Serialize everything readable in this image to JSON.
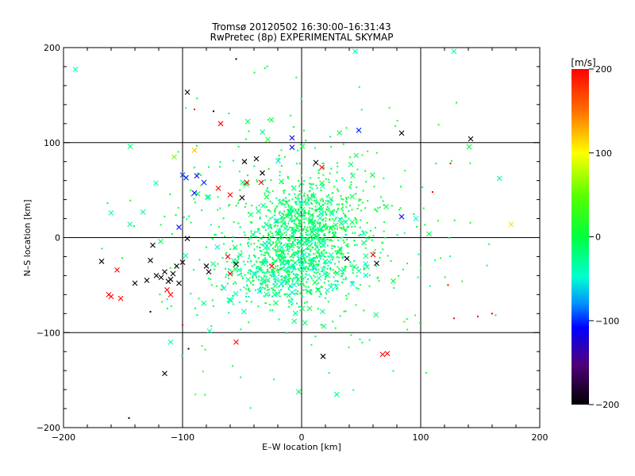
{
  "chart_data": {
    "type": "scatter",
    "title": "Tromsø 20120502 16:30:00–16:31:43",
    "subtitle": "RwPretec (8p) EXPERIMENTAL SKYMAP",
    "xlabel": "E–W location [km]",
    "ylabel": "N–S location [km]",
    "xlim": [
      -200,
      200
    ],
    "ylim": [
      -200,
      200
    ],
    "xticks": [
      "−200",
      "−100",
      "0",
      "100",
      "200"
    ],
    "yticks": [
      "−200",
      "−100",
      "0",
      "100",
      "200"
    ],
    "grid": true,
    "colorbar": {
      "label": "[m/s]",
      "range": [
        -200,
        200
      ],
      "ticks": [
        "200",
        "100",
        "0",
        "−100",
        "−200"
      ]
    },
    "markers": {
      "cross": "×",
      "dot": "·"
    },
    "clusters": [
      {
        "cx": 5,
        "cy": 10,
        "sx": 22,
        "sy": 25,
        "n_dots": 650,
        "n_cross": 90,
        "v": 0
      },
      {
        "cx": -15,
        "cy": -35,
        "sx": 28,
        "sy": 18,
        "n_dots": 450,
        "n_cross": 70,
        "v": -8
      },
      {
        "cx": 0,
        "cy": 0,
        "sx": 60,
        "sy": 70,
        "n_dots": 350,
        "n_cross": 60,
        "v": 5
      }
    ],
    "points": [
      {
        "x": -190,
        "y": 177,
        "v": -20,
        "m": "x"
      },
      {
        "x": -160,
        "y": 26,
        "v": -20,
        "m": "x"
      },
      {
        "x": -162,
        "y": -60,
        "v": 200,
        "m": "x"
      },
      {
        "x": -160,
        "y": -62,
        "v": 200,
        "m": "x"
      },
      {
        "x": -152,
        "y": -64,
        "v": 200,
        "m": "x"
      },
      {
        "x": -145,
        "y": -190,
        "v": -200,
        "m": "."
      },
      {
        "x": -140,
        "y": -48,
        "v": -200,
        "m": "x"
      },
      {
        "x": -168,
        "y": -25,
        "v": -200,
        "m": "x"
      },
      {
        "x": -155,
        "y": -34,
        "v": 200,
        "m": "x"
      },
      {
        "x": -125,
        "y": -8,
        "v": -200,
        "m": "x"
      },
      {
        "x": -127,
        "y": -24,
        "v": -200,
        "m": "x"
      },
      {
        "x": -130,
        "y": -45,
        "v": -200,
        "m": "x"
      },
      {
        "x": -122,
        "y": -40,
        "v": -200,
        "m": "x"
      },
      {
        "x": -118,
        "y": -42,
        "v": -200,
        "m": "x"
      },
      {
        "x": -115,
        "y": -36,
        "v": -200,
        "m": "x"
      },
      {
        "x": -112,
        "y": -46,
        "v": -200,
        "m": "x"
      },
      {
        "x": -110,
        "y": -44,
        "v": -200,
        "m": "x"
      },
      {
        "x": -108,
        "y": -38,
        "v": -200,
        "m": "x"
      },
      {
        "x": -105,
        "y": -30,
        "v": -200,
        "m": "x"
      },
      {
        "x": -103,
        "y": -48,
        "v": -200,
        "m": "x"
      },
      {
        "x": -100,
        "y": -26,
        "v": -200,
        "m": "x"
      },
      {
        "x": -113,
        "y": -55,
        "v": 200,
        "m": "x"
      },
      {
        "x": -110,
        "y": -60,
        "v": 200,
        "m": "x"
      },
      {
        "x": -96,
        "y": -1,
        "v": -200,
        "m": "x"
      },
      {
        "x": -115,
        "y": -143,
        "v": -200,
        "m": "x"
      },
      {
        "x": -110,
        "y": -110,
        "v": -20,
        "m": "x"
      },
      {
        "x": -144,
        "y": 96,
        "v": -10,
        "m": "x"
      },
      {
        "x": -107,
        "y": 85,
        "v": 60,
        "m": "x"
      },
      {
        "x": -96,
        "y": 153,
        "v": -200,
        "m": "x"
      },
      {
        "x": -90,
        "y": 92,
        "v": 120,
        "m": "x"
      },
      {
        "x": -100,
        "y": 66,
        "v": -90,
        "m": "x"
      },
      {
        "x": -97,
        "y": 63,
        "v": -100,
        "m": "x"
      },
      {
        "x": -88,
        "y": 65,
        "v": -110,
        "m": "x"
      },
      {
        "x": -82,
        "y": 58,
        "v": -100,
        "m": "x"
      },
      {
        "x": -90,
        "y": 47,
        "v": -110,
        "m": "x"
      },
      {
        "x": -103,
        "y": 11,
        "v": -110,
        "m": "x"
      },
      {
        "x": -68,
        "y": 120,
        "v": 200,
        "m": "x"
      },
      {
        "x": -70,
        "y": 52,
        "v": 200,
        "m": "x"
      },
      {
        "x": -60,
        "y": 45,
        "v": 200,
        "m": "x"
      },
      {
        "x": -48,
        "y": 80,
        "v": -200,
        "m": "x"
      },
      {
        "x": -46,
        "y": 58,
        "v": 200,
        "m": "x"
      },
      {
        "x": -50,
        "y": 42,
        "v": -200,
        "m": "x"
      },
      {
        "x": -38,
        "y": 83,
        "v": -200,
        "m": "x"
      },
      {
        "x": -33,
        "y": 68,
        "v": -200,
        "m": "x"
      },
      {
        "x": -55,
        "y": -28,
        "v": -200,
        "m": "x"
      },
      {
        "x": -60,
        "y": -38,
        "v": 200,
        "m": "x"
      },
      {
        "x": -80,
        "y": -30,
        "v": -200,
        "m": "x"
      },
      {
        "x": -78,
        "y": -36,
        "v": -200,
        "m": "x"
      },
      {
        "x": -62,
        "y": -20,
        "v": 200,
        "m": "x"
      },
      {
        "x": -55,
        "y": -110,
        "v": 200,
        "m": "x"
      },
      {
        "x": -34,
        "y": 58,
        "v": 200,
        "m": "x"
      },
      {
        "x": -25,
        "y": -30,
        "v": 200,
        "m": "x"
      },
      {
        "x": -8,
        "y": 95,
        "v": -110,
        "m": "x"
      },
      {
        "x": -8,
        "y": 105,
        "v": -110,
        "m": "x"
      },
      {
        "x": 12,
        "y": 79,
        "v": -200,
        "m": "x"
      },
      {
        "x": 17,
        "y": 74,
        "v": 200,
        "m": "x"
      },
      {
        "x": 18,
        "y": -125,
        "v": -200,
        "m": "x"
      },
      {
        "x": 38,
        "y": -22,
        "v": -200,
        "m": "x"
      },
      {
        "x": 48,
        "y": 113,
        "v": -100,
        "m": "x"
      },
      {
        "x": 60,
        "y": -18,
        "v": 200,
        "m": "x"
      },
      {
        "x": 63,
        "y": -27,
        "v": -200,
        "m": "x"
      },
      {
        "x": 68,
        "y": -123,
        "v": 200,
        "m": "x"
      },
      {
        "x": 72,
        "y": -122,
        "v": 200,
        "m": "x"
      },
      {
        "x": 84,
        "y": 110,
        "v": -200,
        "m": "x"
      },
      {
        "x": 84,
        "y": 22,
        "v": -110,
        "m": "x"
      },
      {
        "x": 96,
        "y": 20,
        "v": -30,
        "m": "x"
      },
      {
        "x": 128,
        "y": 196,
        "v": -20,
        "m": "x"
      },
      {
        "x": 142,
        "y": 104,
        "v": -200,
        "m": "x"
      },
      {
        "x": 176,
        "y": 14,
        "v": 110,
        "m": "x"
      },
      {
        "x": 123,
        "y": -50,
        "v": 200,
        "m": "."
      },
      {
        "x": 128,
        "y": -85,
        "v": 200,
        "m": "."
      },
      {
        "x": 148,
        "y": -83,
        "v": 200,
        "m": "."
      },
      {
        "x": 160,
        "y": -80,
        "v": 200,
        "m": "."
      },
      {
        "x": 110,
        "y": 48,
        "v": 200,
        "m": "."
      },
      {
        "x": 125,
        "y": 78,
        "v": 200,
        "m": "."
      },
      {
        "x": 130,
        "y": 142,
        "v": 0,
        "m": "."
      },
      {
        "x": 45,
        "y": 196,
        "v": -20,
        "m": "x"
      },
      {
        "x": -55,
        "y": 188,
        "v": -200,
        "m": "."
      },
      {
        "x": -90,
        "y": 135,
        "v": 200,
        "m": "."
      },
      {
        "x": -74,
        "y": 133,
        "v": -200,
        "m": "."
      },
      {
        "x": -100,
        "y": -92,
        "v": 200,
        "m": "."
      },
      {
        "x": -95,
        "y": -117,
        "v": -200,
        "m": "."
      },
      {
        "x": -127,
        "y": -78,
        "v": -200,
        "m": "."
      }
    ]
  }
}
